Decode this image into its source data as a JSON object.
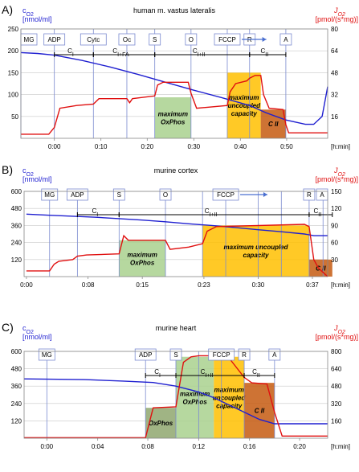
{
  "chart_data": [
    {
      "type": "line",
      "panel_label": "A)",
      "title": "human m. vastus lateralis",
      "left_axis_label_1": "cO2",
      "left_axis_label_2": "[nmol/ml]",
      "right_axis_label_1": "JO2",
      "right_axis_label_2": "[pmol/(s*mg)]",
      "x_unit_label": "[h:min]",
      "xlim": [
        -0.12,
        0.98
      ],
      "ylim_left": [
        0,
        250
      ],
      "ylim_right": [
        0,
        80
      ],
      "yticks_left": [
        50,
        100,
        150,
        200,
        250
      ],
      "yticks_right": [
        16,
        32,
        48,
        64,
        80
      ],
      "xticks": [
        0.0,
        0.167,
        0.333,
        0.5,
        0.667,
        0.833
      ],
      "xtick_labels": [
        "0:00",
        "0:10",
        "0:20",
        "0:30",
        "0:40",
        "0:50"
      ],
      "events": [
        {
          "label": "MG",
          "x": -0.12
        },
        {
          "label": "ADP",
          "x": 0.0
        },
        {
          "label": "Cytc",
          "x": 0.14
        },
        {
          "label": "Oc",
          "x": 0.26
        },
        {
          "label": "S",
          "x": 0.36
        },
        {
          "label": "O",
          "x": 0.49
        },
        {
          "label": "FCCP",
          "x": 0.62
        },
        {
          "label": "R",
          "x": 0.7
        },
        {
          "label": "A",
          "x": 0.83
        }
      ],
      "event_lines": [
        -0.12,
        0.0,
        0.14,
        0.26,
        0.36,
        0.49,
        0.62,
        0.7,
        0.83
      ],
      "arrow_events": [
        {
          "from": 0.62,
          "to": 0.76
        }
      ],
      "brackets": [
        {
          "label": "CI",
          "x1": 0.0,
          "x2": 0.14
        },
        {
          "label": "CI+FA",
          "x1": 0.14,
          "x2": 0.36
        },
        {
          "label": "CI+II",
          "x1": 0.36,
          "x2": 0.7
        },
        {
          "label": "CII",
          "x1": 0.7,
          "x2": 0.83
        }
      ],
      "regions": [
        {
          "label": "maximum\nOxPhos",
          "x1": 0.36,
          "x2": 0.49,
          "y": 30,
          "color": "#a9d18e"
        },
        {
          "label": "maximum\nuncoupled\ncapacity",
          "x1": 0.62,
          "x2": 0.74,
          "y": 48,
          "color": "#ffc000"
        },
        {
          "label": "C II",
          "x1": 0.74,
          "x2": 0.83,
          "y": 21,
          "color": "#c55a11"
        }
      ],
      "series": [
        {
          "axis": "left",
          "color": "#1f1fd0",
          "x": [
            -0.12,
            -0.06,
            0.0,
            0.1,
            0.2,
            0.3,
            0.4,
            0.5,
            0.6,
            0.7,
            0.76,
            0.83,
            0.9,
            0.93,
            0.96,
            0.98
          ],
          "values": [
            196,
            194,
            190,
            178,
            163,
            146,
            128,
            110,
            93,
            75,
            58,
            42,
            32,
            32,
            50,
            118
          ]
        },
        {
          "axis": "right",
          "color": "#e01010",
          "x": [
            -0.12,
            -0.02,
            0.0,
            0.02,
            0.08,
            0.14,
            0.16,
            0.18,
            0.26,
            0.27,
            0.28,
            0.36,
            0.37,
            0.39,
            0.48,
            0.49,
            0.51,
            0.62,
            0.63,
            0.65,
            0.69,
            0.7,
            0.72,
            0.74,
            0.75,
            0.77,
            0.82,
            0.83,
            0.84,
            0.98
          ],
          "values": [
            3,
            3,
            8,
            22,
            24,
            25,
            29,
            29,
            29,
            26,
            29,
            31,
            39,
            41,
            41,
            33,
            22,
            24,
            34,
            40,
            42,
            44,
            46,
            46,
            32,
            22,
            21,
            10,
            4,
            4
          ]
        }
      ]
    },
    {
      "type": "line",
      "panel_label": "B)",
      "title": "murine cortex",
      "left_axis_label_1": "cO2",
      "left_axis_label_2": "[nmol/ml]",
      "right_axis_label_1": "JO2",
      "right_axis_label_2": "[pmol/(s*mg)]",
      "x_unit_label": "[h:min]",
      "xlim": [
        -0.005,
        0.65
      ],
      "ylim_left": [
        0,
        600
      ],
      "ylim_right": [
        0,
        150
      ],
      "yticks_left": [
        120,
        240,
        360,
        480,
        600
      ],
      "yticks_right": [
        30,
        60,
        90,
        120,
        150
      ],
      "xticks": [
        0.0,
        0.133,
        0.25,
        0.383,
        0.5,
        0.617
      ],
      "xtick_labels": [
        "0:00",
        "0:08",
        "0:15",
        "0:23",
        "0:30",
        "0:37"
      ],
      "events": [
        {
          "label": "MG",
          "x": 0.05
        },
        {
          "label": "ADP",
          "x": 0.11
        },
        {
          "label": "S",
          "x": 0.2
        },
        {
          "label": "O",
          "x": 0.3
        },
        {
          "label": "FCCP",
          "x": 0.43
        },
        {
          "label": "R",
          "x": 0.61
        },
        {
          "label": "A",
          "x": 0.68
        }
      ],
      "event_lines": [
        0.05,
        0.11,
        0.2,
        0.3,
        0.38,
        0.43,
        0.5,
        0.55,
        0.61,
        0.64
      ],
      "arrow_events": [
        {
          "from": 0.43,
          "to": 0.52
        }
      ],
      "brackets": [
        {
          "label": "CI",
          "x1": 0.11,
          "x2": 0.2
        },
        {
          "label": "CI+II",
          "x1": 0.2,
          "x2": 0.61
        },
        {
          "label": "CII",
          "x1": 0.61,
          "x2": 0.66
        }
      ],
      "regions": [
        {
          "label": "maximum\nOxPhos",
          "x1": 0.2,
          "x2": 0.3,
          "y": 64,
          "color": "#a9d18e"
        },
        {
          "label": "maximum uncoupled\ncapacity",
          "x1": 0.38,
          "x2": 0.61,
          "y": 90,
          "color": "#ffc000"
        },
        {
          "label": "C II",
          "x1": 0.61,
          "x2": 0.66,
          "y": 30,
          "color": "#c55a11"
        }
      ],
      "series": [
        {
          "axis": "left",
          "color": "#1f1fd0",
          "x": [
            0.0,
            0.05,
            0.1,
            0.15,
            0.2,
            0.25,
            0.3,
            0.35,
            0.4,
            0.45,
            0.5,
            0.55,
            0.6,
            0.62,
            0.65
          ],
          "values": [
            440,
            432,
            425,
            418,
            408,
            398,
            386,
            372,
            360,
            346,
            330,
            316,
            300,
            288,
            288
          ]
        },
        {
          "axis": "right",
          "color": "#e01010",
          "x": [
            0.0,
            0.05,
            0.06,
            0.07,
            0.1,
            0.11,
            0.13,
            0.2,
            0.21,
            0.22,
            0.3,
            0.31,
            0.35,
            0.38,
            0.39,
            0.41,
            0.6,
            0.61,
            0.62,
            0.63,
            0.65
          ],
          "values": [
            10,
            10,
            22,
            27,
            30,
            36,
            38,
            40,
            72,
            64,
            64,
            48,
            52,
            58,
            80,
            88,
            92,
            88,
            30,
            15,
            0
          ]
        }
      ]
    },
    {
      "type": "line",
      "panel_label": "C)",
      "title": "murine heart",
      "left_axis_label_1": "cO2",
      "left_axis_label_2": "[nmol/ml]",
      "right_axis_label_1": "JO2",
      "right_axis_label_2": "[pmol/(s*mg)]",
      "x_unit_label": "[h:min]",
      "xlim": [
        -0.03,
        0.37
      ],
      "ylim_left": [
        0,
        600
      ],
      "ylim_right": [
        0,
        800
      ],
      "yticks_left": [
        120,
        240,
        360,
        480,
        600
      ],
      "yticks_right": [
        160,
        320,
        480,
        640,
        800
      ],
      "xticks": [
        0.0,
        0.067,
        0.133,
        0.2,
        0.267,
        0.333
      ],
      "xtick_labels": [
        "0:00",
        "0:04",
        "0:08",
        "0:12",
        "0:16",
        "0:20"
      ],
      "events": [
        {
          "label": "MG",
          "x": 0.0
        },
        {
          "label": "ADP",
          "x": 0.13
        },
        {
          "label": "S",
          "x": 0.17
        },
        {
          "label": "FCCP",
          "x": 0.23
        },
        {
          "label": "R",
          "x": 0.26
        },
        {
          "label": "A",
          "x": 0.3
        }
      ],
      "event_lines": [
        0.0,
        0.13,
        0.17,
        0.2,
        0.23,
        0.26,
        0.3
      ],
      "arrow_events": [],
      "brackets": [
        {
          "label": "CI",
          "x1": 0.13,
          "x2": 0.17
        },
        {
          "label": "CI+II",
          "x1": 0.17,
          "x2": 0.26
        },
        {
          "label": "CII",
          "x1": 0.26,
          "x2": 0.3
        }
      ],
      "regions": [
        {
          "label": "OxPhos",
          "x1": 0.13,
          "x2": 0.17,
          "y": 280,
          "color": "#8fa76f"
        },
        {
          "label": "maximum\nOxPhos",
          "x1": 0.17,
          "x2": 0.22,
          "y": 750,
          "color": "#a9d18e"
        },
        {
          "label": "maximum\nuncoupled\ncapacity",
          "x1": 0.22,
          "x2": 0.26,
          "y": 750,
          "color": "#ffc000"
        },
        {
          "label": "C II",
          "x1": 0.26,
          "x2": 0.3,
          "y": 510,
          "color": "#c55a11"
        }
      ],
      "series": [
        {
          "axis": "left",
          "color": "#1f1fd0",
          "x": [
            -0.03,
            0.05,
            0.1,
            0.14,
            0.17,
            0.2,
            0.22,
            0.24,
            0.26,
            0.28,
            0.3,
            0.37
          ],
          "values": [
            410,
            405,
            395,
            385,
            360,
            320,
            280,
            230,
            180,
            130,
            100,
            100
          ]
        },
        {
          "axis": "right",
          "color": "#e01010",
          "x": [
            -0.03,
            0.1,
            0.13,
            0.14,
            0.17,
            0.18,
            0.19,
            0.2,
            0.22,
            0.24,
            0.26,
            0.27,
            0.29,
            0.3,
            0.31,
            0.37
          ],
          "values": [
            5,
            5,
            5,
            280,
            290,
            700,
            750,
            760,
            760,
            740,
            560,
            510,
            500,
            240,
            20,
            20
          ]
        }
      ]
    }
  ]
}
